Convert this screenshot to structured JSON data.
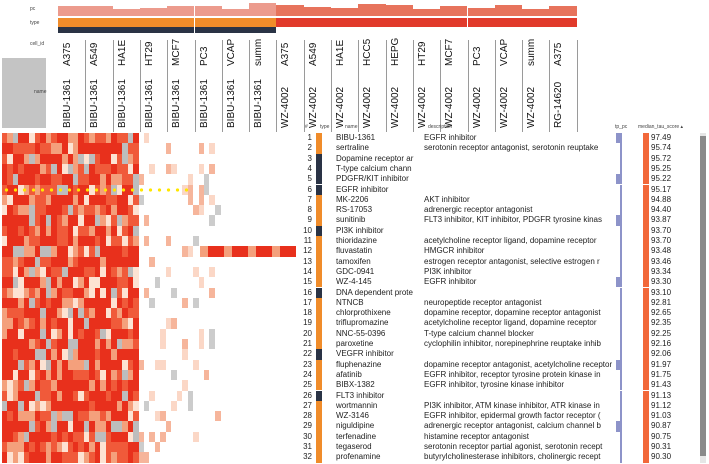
{
  "header": {
    "row_pc": "pc",
    "row_type": "type",
    "row_cell_id": "cell_id",
    "row_name": "name"
  },
  "columns": [
    {
      "cell": "A375",
      "name": "BIBU-1361"
    },
    {
      "cell": "A549",
      "name": "BIBU-1361"
    },
    {
      "cell": "HA1E",
      "name": "BIBU-1361"
    },
    {
      "cell": "HT29",
      "name": "BIBU-1361"
    },
    {
      "cell": "MCF7",
      "name": "BIBU-1361"
    },
    {
      "cell": "PC3",
      "name": "BIBU-1361"
    },
    {
      "cell": "VCAP",
      "name": "BIBU-1361"
    },
    {
      "cell": "summ",
      "name": "BIBU-1361"
    },
    {
      "cell": "A375",
      "name": "WZ-4002"
    },
    {
      "cell": "A549",
      "name": "WZ-4002"
    },
    {
      "cell": "HA1E",
      "name": "WZ-4002"
    },
    {
      "cell": "HCC5",
      "name": "WZ-4002"
    },
    {
      "cell": "HEPG",
      "name": "WZ-4002"
    },
    {
      "cell": "HT29",
      "name": "WZ-4002"
    },
    {
      "cell": "MCF7",
      "name": "WZ-4002"
    },
    {
      "cell": "PC3",
      "name": "WZ-4002"
    },
    {
      "cell": "VCAP",
      "name": "WZ-4002"
    },
    {
      "cell": "summ",
      "name": "WZ-4002"
    },
    {
      "cell": "A375",
      "name": "RG-14620"
    }
  ],
  "table_headers": {
    "num": "#",
    "type": "type",
    "name": "name",
    "description": "description",
    "tp_pc": "tp_pc",
    "score": "median_tau_score ▴"
  },
  "rows": [
    {
      "n": "1",
      "name": "BIBU-1361",
      "desc": "EGFR inhibitor",
      "score": "97.49"
    },
    {
      "n": "2",
      "name": "sertraline",
      "desc": "serotonin receptor antagonist, serotonin reuptake",
      "score": "95.74"
    },
    {
      "n": "3",
      "name": "Dopamine receptor ar",
      "desc": "",
      "score": "95.72"
    },
    {
      "n": "4",
      "name": "T-type calcium chann",
      "desc": "",
      "score": "95.25"
    },
    {
      "n": "5",
      "name": "PDGFR/KIT inhibitor",
      "desc": "",
      "score": "95.22"
    },
    {
      "n": "6",
      "name": "EGFR inhibitor",
      "desc": "",
      "score": "95.17"
    },
    {
      "n": "7",
      "name": "MK-2206",
      "desc": "AKT inhibitor",
      "score": "94.88"
    },
    {
      "n": "8",
      "name": "RS-17053",
      "desc": "adrenergic receptor antagonist",
      "score": "94.40"
    },
    {
      "n": "9",
      "name": "sunitinib",
      "desc": "FLT3 inhibitor, KIT inhibitor, PDGFR tyrosine kinas",
      "score": "93.87"
    },
    {
      "n": "10",
      "name": "PI3K inhibitor",
      "desc": "",
      "score": "93.70"
    },
    {
      "n": "11",
      "name": "thioridazine",
      "desc": "acetylcholine receptor ligand, dopamine receptor",
      "score": "93.70"
    },
    {
      "n": "12",
      "name": "fluvastatin",
      "desc": "HMGCR inhibitor",
      "score": "93.48"
    },
    {
      "n": "13",
      "name": "tamoxifen",
      "desc": "estrogen receptor antagonist, selective estrogen r",
      "score": "93.46"
    },
    {
      "n": "14",
      "name": "GDC-0941",
      "desc": "PI3K inhibitor",
      "score": "93.34"
    },
    {
      "n": "15",
      "name": "WZ-4-145",
      "desc": "EGFR inhibitor",
      "score": "93.30"
    },
    {
      "n": "16",
      "name": "DNA dependent prote",
      "desc": "",
      "score": "93.10"
    },
    {
      "n": "17",
      "name": "NTNCB",
      "desc": "neuropeptide receptor antagonist",
      "score": "92.81"
    },
    {
      "n": "18",
      "name": "chlorprothixene",
      "desc": "dopamine receptor, dopamine receptor antagonist",
      "score": "92.65"
    },
    {
      "n": "19",
      "name": "triflupromazine",
      "desc": "acetylcholine receptor ligand, dopamine receptor",
      "score": "92.35"
    },
    {
      "n": "20",
      "name": "NNC-55-0396",
      "desc": "T-type calcium channel blocker",
      "score": "92.25"
    },
    {
      "n": "21",
      "name": "paroxetine",
      "desc": "cyclophilin inhibitor, norepinephrine reuptake inhib",
      "score": "92.16"
    },
    {
      "n": "22",
      "name": "VEGFR inhibitor",
      "desc": "",
      "score": "92.06"
    },
    {
      "n": "23",
      "name": "fluphenazine",
      "desc": "dopamine receptor antagonist, acetylcholine receptor",
      "score": "91.97"
    },
    {
      "n": "24",
      "name": "afatinib",
      "desc": "EGFR inhibitor, receptor tyrosine protein kinase in",
      "score": "91.75"
    },
    {
      "n": "25",
      "name": "BIBX-1382",
      "desc": "EGFR inhibitor, tyrosine kinase inhibitor",
      "score": "91.43"
    },
    {
      "n": "26",
      "name": "FLT3 inhibitor",
      "desc": "",
      "score": "91.13"
    },
    {
      "n": "27",
      "name": "wortmannin",
      "desc": "PI3K inhibitor, ATM kinase inhibitor, ATR kinase in",
      "score": "91.12"
    },
    {
      "n": "28",
      "name": "WZ-3146",
      "desc": "EGFR inhibitor, epidermal growth factor receptor (",
      "score": "91.03"
    },
    {
      "n": "29",
      "name": "niguldipine",
      "desc": "adrenergic receptor antagonist, calcium channel b",
      "score": "90.87"
    },
    {
      "n": "30",
      "name": "terfenadine",
      "desc": "histamine receptor antagonist",
      "score": "90.75"
    },
    {
      "n": "31",
      "name": "tegaserod",
      "desc": "serotonin receptor partial agonist, serotonin recept",
      "score": "90.31"
    },
    {
      "n": "32",
      "name": "profenamine",
      "desc": "butyrylcholinesterase inhibitors, cholinergic recept",
      "score": "90.30"
    }
  ],
  "colors": {
    "high": "#e8301c",
    "mid": "#f4a07c",
    "low": "#fde3d3",
    "type_orange": "#f08c2a",
    "pcl_dark": "#2a3345",
    "score_bar": "#f2683a",
    "tp_bar": "#8d93c9"
  }
}
